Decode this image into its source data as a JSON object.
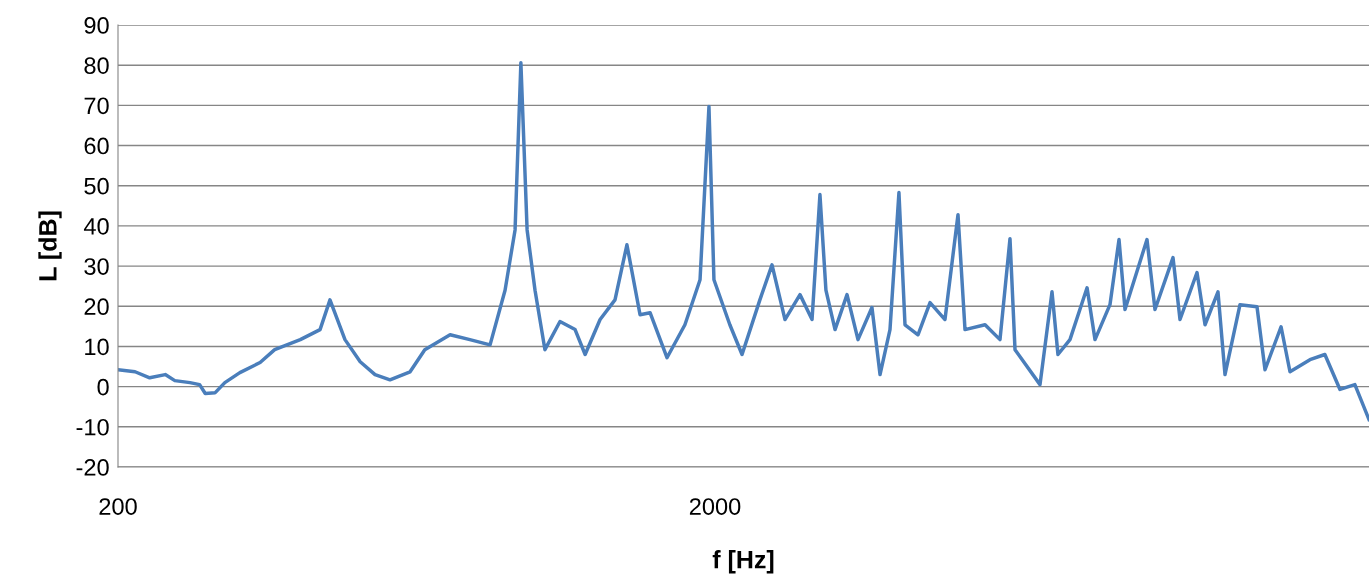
{
  "chart_data": {
    "type": "line",
    "xlabel": "f [Hz]",
    "ylabel": "L [dB]",
    "log": "x",
    "grid": "y",
    "xlim": [
      200,
      24920
    ],
    "xticks": [
      200,
      2000
    ],
    "ylim": [
      -20,
      90
    ],
    "yticks": [
      -20,
      -10,
      0,
      10,
      20,
      30,
      40,
      50,
      60,
      70,
      80,
      90
    ],
    "series": [
      {
        "color": "#4a7ebb",
        "x": [
          200,
          213.6,
          226,
          240,
          249,
          264,
          274,
          280,
          291,
          302,
          320,
          346,
          366,
          404,
          436,
          453,
          480,
          509,
          539,
          571,
          617,
          653,
          720,
          777,
          840,
          890,
          925,
          946,
          969,
          999,
          1038,
          1100,
          1166,
          1212,
          1284,
          1360,
          1424,
          1498,
          1557,
          1662,
          1781,
          1888,
          1954,
          1992,
          2118,
          2220,
          2378,
          2492,
          2620,
          2776,
          2908,
          2998,
          3068,
          3178,
          3328,
          3472,
          3664,
          3780,
          3928,
          4066,
          4162,
          4376,
          4584,
          4856,
          5106,
          5246,
          5668,
          6004,
          6240,
          6362,
          7006,
          7338,
          7508,
          7864,
          8400,
          8662,
          9176,
          9502,
          9724,
          10584,
          10916,
          11702,
          12022,
          12836,
          13240,
          13918,
          14300,
          15152,
          16178,
          16686,
          17752,
          18374,
          19844,
          21020,
          22280,
          23600,
          24920
        ],
        "values": [
          4.2,
          3.7,
          2.2,
          3,
          1.5,
          1,
          0.5,
          -1.7,
          -1.5,
          1,
          3.5,
          6,
          9.2,
          11.7,
          14.2,
          21.6,
          11.7,
          6.2,
          3,
          1.7,
          3.7,
          9.2,
          12.9,
          11.7,
          10.4,
          24,
          39,
          80.6,
          39,
          24,
          9.2,
          16.2,
          14.2,
          8,
          16.7,
          21.6,
          35.3,
          17.9,
          18.4,
          7.2,
          15.4,
          26.6,
          69.7,
          26.6,
          15.4,
          8,
          21.6,
          30.3,
          16.7,
          22.9,
          16.7,
          47.8,
          24,
          14.2,
          22.9,
          11.7,
          19.7,
          3,
          14.2,
          48.3,
          15.4,
          12.9,
          20.9,
          16.7,
          42.8,
          14.2,
          15.4,
          11.7,
          36.8,
          9.2,
          0.5,
          23.6,
          8,
          11.7,
          24.6,
          11.7,
          20.4,
          36.6,
          19.2,
          36.6,
          19.2,
          32.1,
          16.7,
          28.4,
          15.4,
          23.6,
          3,
          20.4,
          19.9,
          4.2,
          14.9,
          3.7,
          6.7,
          8,
          -0.7,
          0.5,
          -8.2
        ]
      }
    ]
  }
}
